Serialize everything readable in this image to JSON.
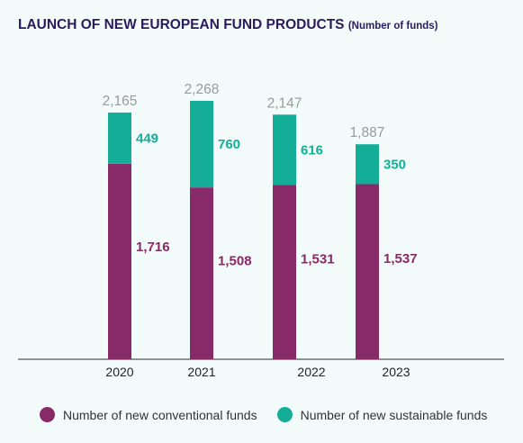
{
  "header": {
    "title": "LAUNCH OF NEW EUROPEAN FUND PRODUCTS",
    "subtitle": "(Number of funds)"
  },
  "colors": {
    "conventional": "#882a68",
    "sustainable": "#14ae98",
    "total_label": "#9a9a9a",
    "axis": "#555555"
  },
  "chart_data": {
    "type": "bar",
    "stacked": true,
    "title": "LAUNCH OF NEW EUROPEAN FUND PRODUCTS",
    "subtitle": "(Number of funds)",
    "categories": [
      "2020",
      "2021",
      "2022",
      "2023"
    ],
    "series": [
      {
        "name": "Number of new conventional funds",
        "values": [
          1716,
          1508,
          1531,
          1537
        ]
      },
      {
        "name": "Number of new sustainable funds",
        "values": [
          449,
          760,
          616,
          350
        ]
      }
    ],
    "series_value_labels": [
      [
        "1,716",
        "1,508",
        "1,531",
        "1,537"
      ],
      [
        "449",
        "760",
        "616",
        "350"
      ]
    ],
    "totals": [
      2165,
      2268,
      2147,
      1887
    ],
    "total_labels": [
      "2,165",
      "2,268",
      "2,147",
      "1,887"
    ],
    "ylim": [
      0,
      2268
    ],
    "grid": false,
    "legend_position": "bottom"
  },
  "legend": {
    "items": [
      {
        "label": "Number of new conventional funds"
      },
      {
        "label": "Number of new sustainable funds"
      }
    ]
  }
}
